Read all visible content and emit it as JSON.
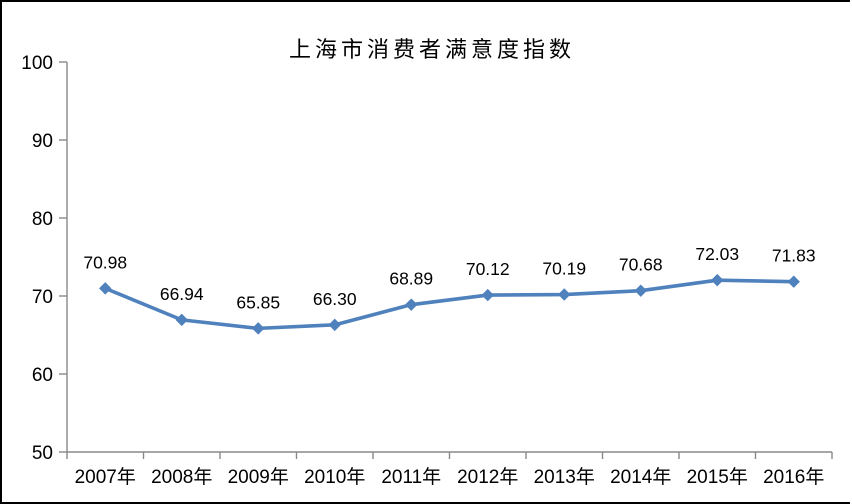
{
  "chart_data": {
    "type": "line",
    "title": "上海市消费者满意度指数",
    "categories": [
      "2007年",
      "2008年",
      "2009年",
      "2010年",
      "2011年",
      "2012年",
      "2013年",
      "2014年",
      "2015年",
      "2016年"
    ],
    "values": [
      70.98,
      66.94,
      65.85,
      66.3,
      68.89,
      70.12,
      70.19,
      70.68,
      72.03,
      71.83
    ],
    "data_labels": [
      "70.98",
      "66.94",
      "65.85",
      "66.30",
      "68.89",
      "70.12",
      "70.19",
      "70.68",
      "72.03",
      "71.83"
    ],
    "y_ticks": [
      "50",
      "60",
      "70",
      "80",
      "90",
      "100"
    ],
    "ylim": [
      50,
      100
    ],
    "xlabel": "",
    "ylabel": "",
    "grid": false,
    "legend": "none",
    "line_color": "#4F81BD",
    "marker": "diamond",
    "axis_color": "#898989",
    "text_color": "#000000",
    "background_color": "#FFFFFF"
  }
}
